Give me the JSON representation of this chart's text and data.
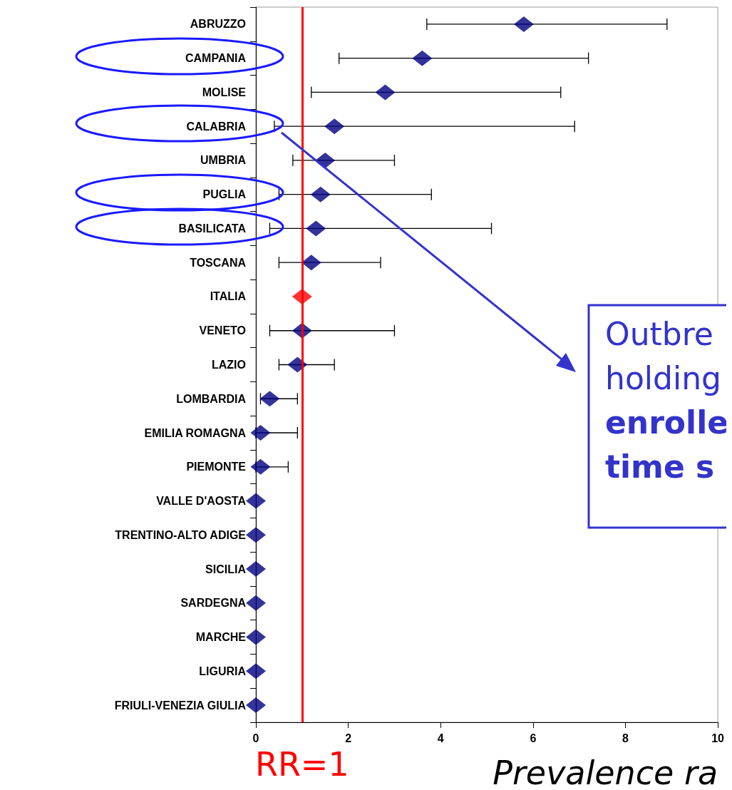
{
  "chart_data": {
    "type": "scatter",
    "orientation": "horizontal",
    "xlabel": "Prevalence ra",
    "marker": "diamond",
    "grid": false,
    "categories": [
      "ABRUZZO",
      "CAMPANIA",
      "MOLISE",
      "CALABRIA",
      "UMBRIA",
      "PUGLIA",
      "BASILICATA",
      "TOSCANA",
      "ITALIA",
      "VENETO",
      "LAZIO",
      "LOMBARDIA",
      "EMILIA ROMAGNA",
      "PIEMONTE",
      "VALLE D'AOSTA",
      "TRENTINO-ALTO ADIGE",
      "SICILIA",
      "SARDEGNA",
      "MARCHE",
      "LIGURIA",
      "FRIULI-VENEZIA GIULIA"
    ],
    "values": [
      5.8,
      3.6,
      2.8,
      1.7,
      1.5,
      1.4,
      1.3,
      1.2,
      1.0,
      1.0,
      0.9,
      0.3,
      0.1,
      0.1,
      0,
      0,
      0,
      0,
      0,
      0,
      0
    ],
    "errors": [
      [
        3.7,
        8.9
      ],
      [
        1.8,
        7.2
      ],
      [
        1.2,
        6.6
      ],
      [
        0.4,
        6.9
      ],
      [
        0.8,
        3.0
      ],
      [
        0.5,
        3.8
      ],
      [
        0.3,
        5.1
      ],
      [
        0.5,
        2.7
      ],
      null,
      [
        0.3,
        3.0
      ],
      [
        0.5,
        1.7
      ],
      [
        0.1,
        0.9
      ],
      [
        0,
        0.9
      ],
      [
        0,
        0.7
      ],
      null,
      null,
      null,
      null,
      null,
      null,
      null
    ],
    "colors": [
      "#000080",
      "#000080",
      "#000080",
      "#000080",
      "#000080",
      "#000080",
      "#000080",
      "#000080",
      "#ff0000",
      "#000080",
      "#000080",
      "#000080",
      "#000080",
      "#000080",
      "#000080",
      "#000080",
      "#000080",
      "#000080",
      "#000080",
      "#000080",
      "#000080"
    ],
    "xlim": [
      0,
      10
    ],
    "xticks": [
      0,
      2,
      4,
      6,
      8,
      10
    ],
    "ref_lines": [
      {
        "axis": "x",
        "value": 1,
        "label": "RR=1",
        "color": "#ff0000"
      }
    ],
    "annotations": [
      "Outbre",
      "holding",
      "enrolle",
      "time s"
    ]
  }
}
